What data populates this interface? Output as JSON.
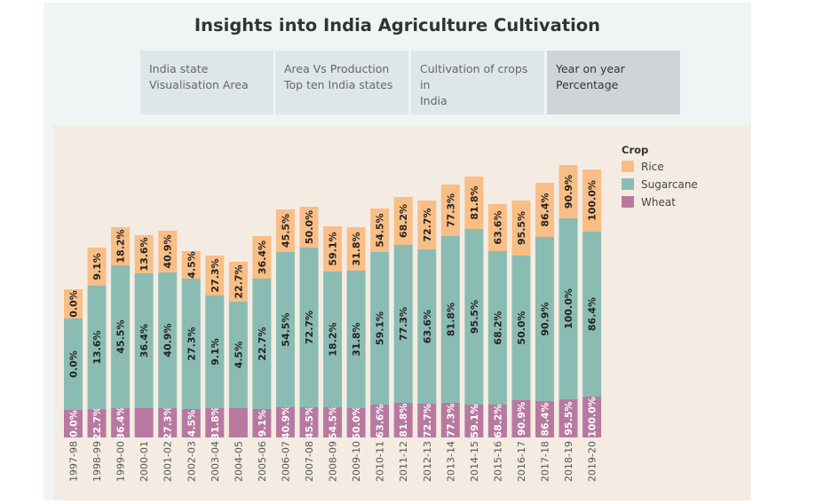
{
  "dashboard": {
    "title": "Insights into India Agriculture Cultivation",
    "tabs": [
      {
        "label": "India state Visualisation Area",
        "line1": "India state",
        "line2": "Visualisation Area",
        "active": false
      },
      {
        "label": "Area Vs Production Top ten India states",
        "line1": "Area Vs Production",
        "line2": "Top ten India states",
        "active": false
      },
      {
        "label": "Cultivation of crops in India",
        "line1": "Cultivation of crops in",
        "line2": "India",
        "active": false
      },
      {
        "label": "Year on year Percentage",
        "line1": "Year on year",
        "line2": "Percentage",
        "active": true
      }
    ]
  },
  "colors": {
    "rice": "#f9be86",
    "sugarcane": "#8abcb4",
    "wheat": "#b879a1",
    "chart_bg": "#f4ece2"
  },
  "chart_data": {
    "type": "bar",
    "stacked": true,
    "legend": {
      "title": "Crop",
      "position": "top-right"
    },
    "categories": [
      "1997-98",
      "1998-99",
      "1999-00",
      "2000-01",
      "2001-02",
      "2002-03",
      "2003-04",
      "2004-05",
      "2005-06",
      "2006-07",
      "2007-08",
      "2008-09",
      "2009-10",
      "2010-11",
      "2011-12",
      "2012-13",
      "2013-14",
      "2014-15",
      "2015-16",
      "2016-17",
      "2017-18",
      "2018-19",
      "2019-20"
    ],
    "series": [
      {
        "name": "Wheat",
        "values": [
          31,
          32,
          33,
          33,
          33,
          32,
          33,
          33,
          32,
          34,
          34,
          34,
          33,
          37,
          39,
          38,
          39,
          37,
          37,
          42,
          41,
          43,
          46
        ],
        "labels": [
          "0.0%",
          "22.7%",
          "36.4%",
          "",
          "27.3%",
          "4.5%",
          "31.8%",
          "",
          "9.1%",
          "40.9%",
          "45.5%",
          "54.5%",
          "50.0%",
          "63.6%",
          "81.8%",
          "72.7%",
          "77.3%",
          "59.1%",
          "68.2%",
          "90.9%",
          "86.4%",
          "95.5%",
          "100.0%"
        ]
      },
      {
        "name": "Sugarcane",
        "values": [
          103,
          139,
          161,
          152,
          153,
          147,
          127,
          120,
          147,
          175,
          180,
          153,
          155,
          172,
          178,
          174,
          188,
          198,
          173,
          163,
          185,
          204,
          186
        ],
        "labels": [
          "0.0%",
          "13.6%",
          "45.5%",
          "36.4%",
          "40.9%",
          "27.3%",
          "9.1%",
          "4.5%",
          "22.7%",
          "54.5%",
          "72.7%",
          "18.2%",
          "31.8%",
          "59.1%",
          "77.3%",
          "63.6%",
          "81.8%",
          "95.5%",
          "68.2%",
          "50.0%",
          "90.9%",
          "100.0%",
          "86.4%"
        ]
      },
      {
        "name": "Rice",
        "values": [
          33,
          43,
          43,
          43,
          47,
          31,
          45,
          45,
          48,
          48,
          46,
          51,
          49,
          49,
          54,
          55,
          58,
          59,
          53,
          62,
          61,
          60,
          70
        ],
        "labels": [
          "0.0%",
          "9.1%",
          "18.2%",
          "13.6%",
          "40.9%",
          "4.5%",
          "27.3%",
          "22.7%",
          "36.4%",
          "45.5%",
          "50.0%",
          "59.1%",
          "31.8%",
          "54.5%",
          "68.2%",
          "72.7%",
          "77.3%",
          "81.8%",
          "63.6%",
          "95.5%",
          "86.4%",
          "90.9%",
          "100.0%"
        ]
      }
    ]
  }
}
